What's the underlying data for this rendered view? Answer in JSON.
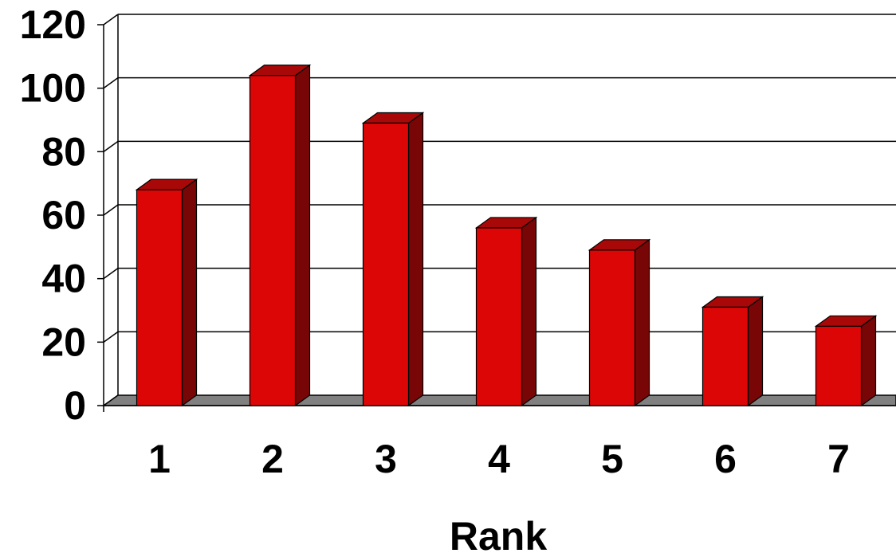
{
  "chart_data": {
    "type": "bar",
    "style": "3d-column",
    "categories": [
      "1",
      "2",
      "3",
      "4",
      "5",
      "6",
      "7"
    ],
    "values": [
      68,
      104,
      89,
      56,
      49,
      31,
      25
    ],
    "title": "",
    "xlabel": "Rank",
    "ylabel": "",
    "ylim": [
      0,
      120
    ],
    "yticks": [
      "0",
      "20",
      "40",
      "60",
      "80",
      "100",
      "120"
    ],
    "grid": true,
    "legend": "none",
    "colors": {
      "bar_front": "#dd0606",
      "bar_side": "#780606",
      "bar_top": "#a80808",
      "floor": "#808080",
      "gridline": "#000000",
      "background": "#ffffff"
    }
  }
}
